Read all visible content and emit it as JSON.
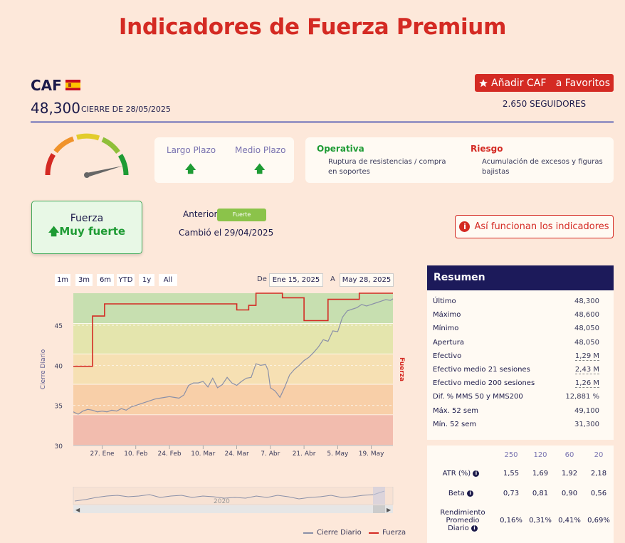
{
  "title": "Indicadores de Fuerza Premium",
  "ticker": "CAF",
  "flag_icon": "spain-flag-icon",
  "price": "48,300",
  "close_label": "CIERRE DE 28/05/2025",
  "favorites_button": "Añadir CAF   a Favoritos",
  "followers": "2.650 SEGUIDORES",
  "gauge": {
    "level": 0.92
  },
  "plazo": {
    "largo_label": "Largo Plazo",
    "medio_label": "Medio Plazo",
    "largo_direction": "up",
    "medio_direction": "up",
    "up_arrow": "🡅"
  },
  "operativa": {
    "title": "Operativa",
    "text": "Ruptura de resistencias / compra en soportes"
  },
  "riesgo": {
    "title": "Riesgo",
    "text": "Acumulación de excesos y figuras bajistas"
  },
  "fuerza": {
    "label": "Fuerza",
    "value": "Muy fuerte",
    "arrow": "🡅"
  },
  "anterior": {
    "label": "Anterior",
    "badge": "Fuerte"
  },
  "cambio": "Cambió el 29/04/2025",
  "info_button": "Así funcionan los indicadores",
  "info_icon": "i",
  "range_buttons": [
    "1m",
    "3m",
    "6m",
    "YTD",
    "1y",
    "All"
  ],
  "date_from_label": "De",
  "date_from": "Ene 15, 2025",
  "date_to_label": "A",
  "date_to": "May 28, 2025",
  "navigator_label": "2020",
  "legend": {
    "cierre": "Cierre Diario",
    "fuerza": "Fuerza"
  },
  "colors": {
    "accent_red": "#d42a23",
    "navy": "#1c1a5a",
    "green": "#1e9b34",
    "zone_1": "#c7dfb0",
    "zone_2": "#e4e5ad",
    "zone_3": "#f6e0b3",
    "zone_4": "#f8cfa8",
    "zone_5": "#f2bcae"
  },
  "chart_data": {
    "type": "line",
    "xlabel": "",
    "ylabel": "Cierre Diario",
    "ylabel_right": "Fuerza",
    "ylim": [
      30,
      49
    ],
    "yticks": [
      30,
      35,
      40,
      45
    ],
    "xticks": [
      "27. Ene",
      "10. Feb",
      "24. Feb",
      "10. Mar",
      "24. Mar",
      "7. Abr",
      "21. Abr",
      "5. May",
      "19. May"
    ],
    "xtick_days": [
      12,
      26,
      40,
      54,
      68,
      82,
      96,
      110,
      124
    ],
    "x_start": "2025-01-15",
    "x_end": "2025-05-28",
    "grid": true,
    "legend_position": "bottom-right",
    "series": [
      {
        "name": "Cierre Diario",
        "day": [
          0,
          2,
          4,
          6,
          8,
          10,
          12,
          14,
          16,
          18,
          20,
          22,
          24,
          26,
          28,
          30,
          32,
          34,
          36,
          38,
          40,
          42,
          44,
          46,
          48,
          50,
          52,
          54,
          56,
          58,
          60,
          62,
          64,
          66,
          68,
          70,
          72,
          74,
          76,
          78,
          80,
          81,
          82,
          84,
          86,
          88,
          90,
          92,
          94,
          96,
          98,
          100,
          102,
          104,
          106,
          108,
          110,
          112,
          114,
          116,
          118,
          120,
          122,
          124,
          126,
          128,
          130,
          132,
          133
        ],
        "values": [
          34.2,
          33.9,
          34.3,
          34.5,
          34.4,
          34.2,
          34.3,
          34.2,
          34.4,
          34.3,
          34.6,
          34.4,
          34.8,
          35.0,
          35.2,
          35.4,
          35.6,
          35.8,
          35.9,
          36.0,
          36.1,
          36.0,
          35.9,
          36.3,
          37.5,
          37.8,
          37.8,
          38.0,
          37.3,
          38.4,
          37.2,
          37.6,
          38.5,
          37.8,
          37.5,
          38.0,
          38.4,
          38.5,
          40.2,
          40.0,
          40.1,
          39.4,
          37.2,
          36.8,
          36.0,
          37.3,
          38.8,
          39.5,
          40.0,
          40.6,
          41.0,
          41.6,
          42.3,
          43.2,
          43.0,
          44.3,
          44.2,
          46.0,
          46.8,
          47.0,
          47.2,
          47.6,
          47.4,
          47.6,
          47.8,
          48.0,
          48.2,
          48.1,
          48.3
        ]
      },
      {
        "name": "Fuerza",
        "day": [
          0,
          8,
          8,
          13,
          13,
          40,
          40,
          54,
          54,
          68,
          68,
          73,
          73,
          76,
          76,
          87,
          87,
          96,
          96,
          104,
          104,
          106,
          106,
          119,
          119,
          133
        ],
        "level": [
          2.6,
          2.6,
          4.25,
          4.25,
          4.65,
          4.65,
          4.65,
          4.65,
          4.65,
          4.65,
          4.45,
          4.45,
          4.6,
          4.6,
          5.0,
          5.0,
          4.85,
          4.85,
          4.1,
          4.1,
          4.1,
          4.1,
          4.8,
          4.8,
          5.0,
          5.0
        ]
      }
    ],
    "zones": [
      {
        "from": 4,
        "to": 5,
        "color": "#c7dfb0"
      },
      {
        "from": 3,
        "to": 4,
        "color": "#e4e5ad"
      },
      {
        "from": 2,
        "to": 3,
        "color": "#f6e0b3"
      },
      {
        "from": 1,
        "to": 2,
        "color": "#f8cfa8"
      },
      {
        "from": 0,
        "to": 1,
        "color": "#f2bcae"
      }
    ]
  },
  "resumen": {
    "title": "Resumen",
    "rows": [
      {
        "label": "Último",
        "value": "48,300",
        "u": false
      },
      {
        "label": "Máximo",
        "value": "48,600",
        "u": false
      },
      {
        "label": "Mínimo",
        "value": "48,050",
        "u": false
      },
      {
        "label": "Apertura",
        "value": "48,050",
        "u": false
      },
      {
        "label": "Efectivo",
        "value": "1,29 M",
        "u": true
      },
      {
        "label": "Efectivo medio 21 sesiones",
        "value": "2,43 M",
        "u": true
      },
      {
        "label": "Efectivo medio 200 sesiones",
        "value": "1,26 M",
        "u": true
      },
      {
        "label": "Dif. % MMS 50 y MMS200",
        "value": "12,881 %",
        "u": false
      },
      {
        "label": "Máx. 52 sem",
        "value": "49,100",
        "u": false
      },
      {
        "label": "Mín. 52 sem",
        "value": "31,300",
        "u": false
      }
    ]
  },
  "stats": {
    "headers": [
      "250",
      "120",
      "60",
      "20"
    ],
    "rows": [
      {
        "label": "ATR (%)",
        "values": [
          "1,55",
          "1,69",
          "1,92",
          "2,18"
        ]
      },
      {
        "label": "Beta",
        "values": [
          "0,73",
          "0,81",
          "0,90",
          "0,56"
        ]
      },
      {
        "label": "Rendimiento Promedio Diario",
        "values": [
          "0,16%",
          "0,31%",
          "0,41%",
          "0,69%"
        ]
      }
    ]
  }
}
